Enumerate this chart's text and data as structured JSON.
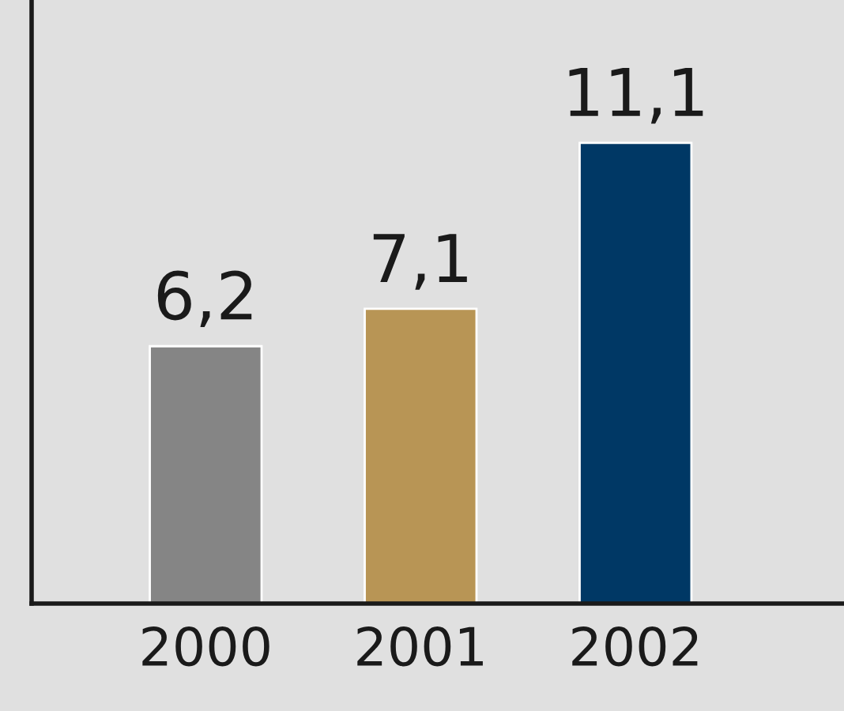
{
  "chart_data": {
    "type": "bar",
    "categories": [
      "2000",
      "2001",
      "2002"
    ],
    "values": [
      6.2,
      7.1,
      11.1
    ],
    "value_labels": [
      "6,2",
      "7,1",
      "11,1"
    ],
    "colors": [
      "#858585",
      "#b89555",
      "#003865"
    ]
  }
}
